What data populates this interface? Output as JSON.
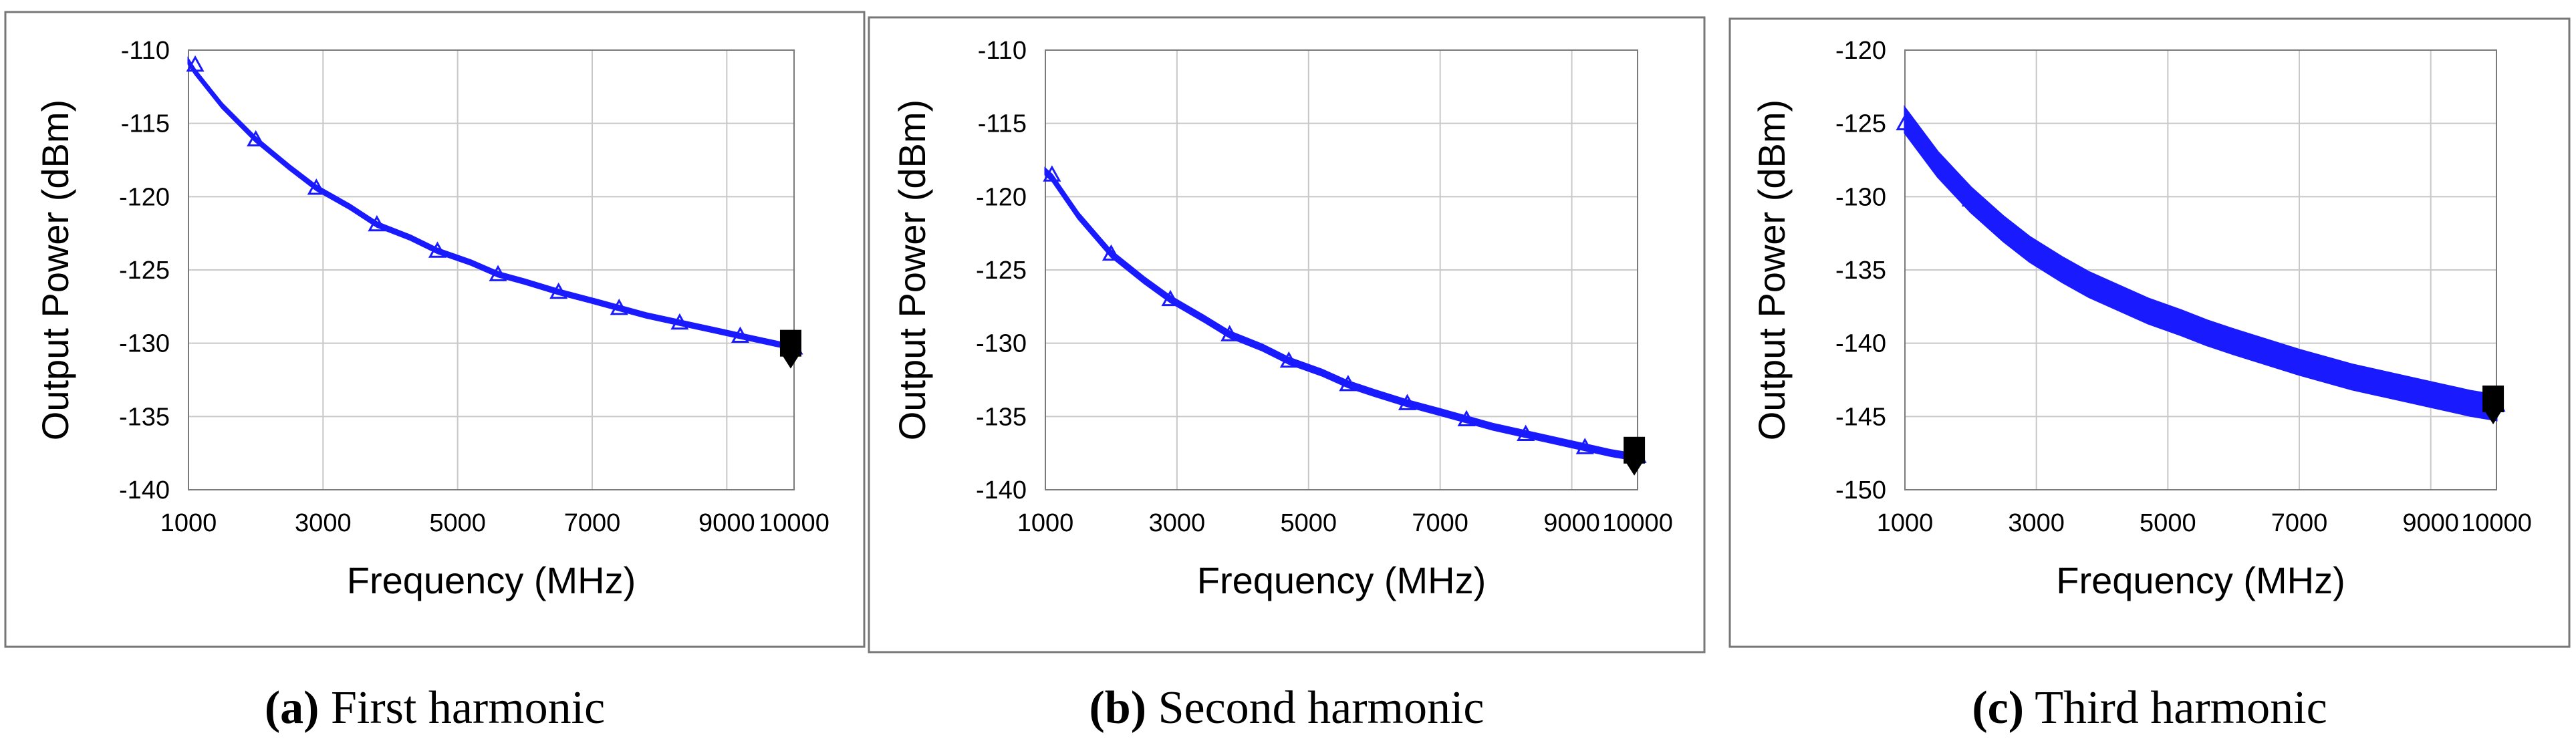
{
  "figure": {
    "panels": [
      {
        "caption_letter": "(a)",
        "caption_text": "First harmonic",
        "chart_data": {
          "type": "line",
          "xlabel": "Frequency (MHz)",
          "ylabel": "Output Power (dBm)",
          "xlim": [
            1000,
            10000
          ],
          "ylim": [
            -140,
            -110
          ],
          "x_tick_values": [
            1000,
            3000,
            5000,
            7000,
            9000,
            10000
          ],
          "x_tick_labels": [
            "1000",
            "3000",
            "5000",
            "7000",
            "9000",
            "10000"
          ],
          "y_tick_values": [
            -110,
            -115,
            -120,
            -125,
            -130,
            -135,
            -140
          ],
          "y_tick_labels": [
            "-110",
            "-115",
            "-120",
            "-125",
            "-130",
            "-135",
            "-140"
          ],
          "grid": true,
          "band_width_db": 0.3,
          "series": [
            {
              "name": "Output Power",
              "color": "#1a1aff",
              "marker": "triangle",
              "x": [
                1000,
                1100,
                1500,
                2000,
                2500,
                2900,
                3400,
                3800,
                4300,
                4700,
                5200,
                5600,
                6000,
                6500,
                7000,
                7400,
                7800,
                8300,
                8800,
                9200,
                9600,
                10000
              ],
              "y": [
                -110.8,
                -111.5,
                -113.8,
                -116.1,
                -118.0,
                -119.4,
                -120.7,
                -121.9,
                -122.8,
                -123.7,
                -124.5,
                -125.3,
                -125.8,
                -126.5,
                -127.1,
                -127.6,
                -128.1,
                -128.6,
                -129.1,
                -129.5,
                -129.9,
                -130.3
              ],
              "marker_x": [
                1100,
                2000,
                2900,
                3800,
                4700,
                5600,
                6500,
                7400,
                8300,
                9200,
                10000
              ],
              "marker_y": [
                -111.0,
                -116.1,
                -119.4,
                -121.9,
                -123.7,
                -125.3,
                -126.5,
                -127.6,
                -128.6,
                -129.5,
                -130.3
              ]
            }
          ],
          "end_marker": {
            "x": 9950,
            "y": -130.0,
            "color": "#000000"
          }
        }
      },
      {
        "caption_letter": "(b)",
        "caption_text": "Second harmonic",
        "chart_data": {
          "type": "line",
          "xlabel": "Frequency (MHz)",
          "ylabel": "Output Power (dBm)",
          "xlim": [
            1000,
            10000
          ],
          "ylim": [
            -140,
            -110
          ],
          "x_tick_values": [
            1000,
            3000,
            5000,
            7000,
            9000,
            10000
          ],
          "x_tick_labels": [
            "1000",
            "3000",
            "5000",
            "7000",
            "9000",
            "10000"
          ],
          "y_tick_values": [
            -110,
            -115,
            -120,
            -125,
            -130,
            -135,
            -140
          ],
          "y_tick_labels": [
            "-110",
            "-115",
            "-120",
            "-125",
            "-130",
            "-135",
            "-140"
          ],
          "grid": true,
          "band_width_db": 0.4,
          "series": [
            {
              "name": "Output Power",
              "color": "#1a1aff",
              "marker": "triangle",
              "x": [
                1000,
                1100,
                1500,
                2000,
                2500,
                2900,
                3400,
                3800,
                4300,
                4700,
                5200,
                5600,
                6000,
                6500,
                7000,
                7400,
                7800,
                8300,
                8800,
                9200,
                9600,
                10000
              ],
              "y": [
                -118.3,
                -118.7,
                -121.3,
                -123.9,
                -125.7,
                -127.0,
                -128.3,
                -129.4,
                -130.3,
                -131.2,
                -132.0,
                -132.8,
                -133.4,
                -134.1,
                -134.7,
                -135.2,
                -135.7,
                -136.2,
                -136.7,
                -137.1,
                -137.5,
                -137.8
              ],
              "marker_x": [
                1100,
                2000,
                2900,
                3800,
                4700,
                5600,
                6500,
                7400,
                8300,
                9200,
                10000
              ],
              "marker_y": [
                -118.5,
                -123.9,
                -127.0,
                -129.4,
                -131.2,
                -132.8,
                -134.1,
                -135.2,
                -136.2,
                -137.1,
                -137.7
              ]
            }
          ],
          "end_marker": {
            "x": 9950,
            "y": -137.3,
            "color": "#000000"
          }
        }
      },
      {
        "caption_letter": "(c)",
        "caption_text": "Third harmonic",
        "chart_data": {
          "type": "area",
          "xlabel": "Frequency (MHz)",
          "ylabel": "Output Power (dBm)",
          "xlim": [
            1000,
            10000
          ],
          "ylim": [
            -150,
            -120
          ],
          "x_tick_values": [
            1000,
            3000,
            5000,
            7000,
            9000,
            10000
          ],
          "x_tick_labels": [
            "1000",
            "3000",
            "5000",
            "7000",
            "9000",
            "10000"
          ],
          "y_tick_values": [
            -120,
            -125,
            -130,
            -135,
            -140,
            -145,
            -150
          ],
          "y_tick_labels": [
            "-120",
            "-125",
            "-130",
            "-135",
            "-140",
            "-145",
            "-150"
          ],
          "grid": true,
          "band_width_db": 1.7,
          "series": [
            {
              "name": "Output Power",
              "color": "#1a1aff",
              "marker": "triangle",
              "x": [
                1000,
                1100,
                1500,
                2000,
                2500,
                2900,
                3400,
                3800,
                4300,
                4700,
                5200,
                5600,
                6000,
                6500,
                7000,
                7400,
                7800,
                8300,
                8800,
                9200,
                9600,
                10000
              ],
              "y": [
                -124.8,
                -125.4,
                -127.8,
                -130.2,
                -132.2,
                -133.6,
                -135.0,
                -136.0,
                -137.0,
                -137.8,
                -138.6,
                -139.3,
                -139.9,
                -140.6,
                -141.3,
                -141.8,
                -142.3,
                -142.8,
                -143.3,
                -143.7,
                -144.1,
                -144.4
              ],
              "marker_x": [
                1000,
                2000,
                2900,
                3800,
                4700,
                5600,
                6500,
                7400,
                8300,
                9200,
                10000
              ],
              "marker_y": [
                -125.0,
                -130.2,
                -133.6,
                -136.0,
                -137.8,
                -139.3,
                -140.6,
                -141.8,
                -142.8,
                -143.7,
                -144.2
              ]
            }
          ],
          "end_marker": {
            "x": 9950,
            "y": -143.8,
            "color": "#000000"
          }
        }
      }
    ]
  }
}
